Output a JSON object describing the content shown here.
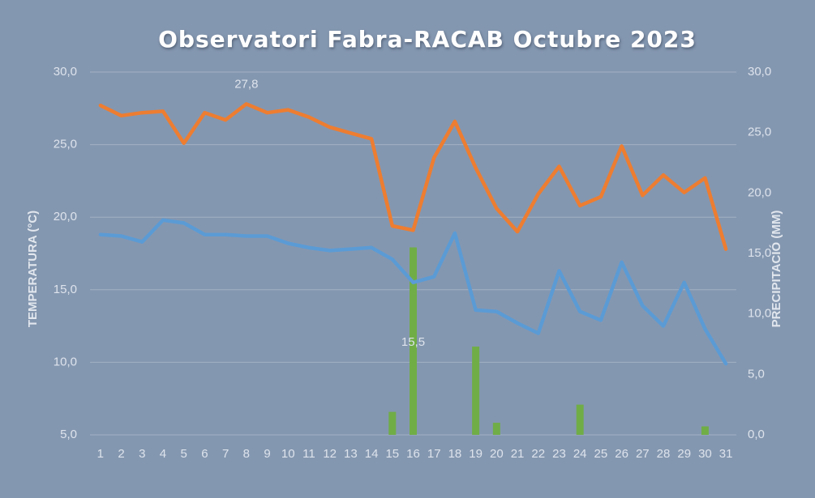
{
  "chart_data": {
    "type": "combo",
    "title": "Observatori Fabra-RACAB Octubre 2023",
    "y_label": "TEMPERATURA (°C)",
    "y2_label": "PRECIPITACIÓ (MM)",
    "categories": [
      "1",
      "2",
      "3",
      "4",
      "5",
      "6",
      "7",
      "8",
      "9",
      "10",
      "11",
      "12",
      "13",
      "14",
      "15",
      "16",
      "17",
      "18",
      "19",
      "20",
      "21",
      "22",
      "23",
      "24",
      "25",
      "26",
      "27",
      "28",
      "29",
      "30",
      "31"
    ],
    "ylim": [
      5,
      30
    ],
    "yticks": [
      {
        "value": 5,
        "label": "5,0"
      },
      {
        "value": 10,
        "label": "10,0"
      },
      {
        "value": 15,
        "label": "15,0"
      },
      {
        "value": 20,
        "label": "20,0"
      },
      {
        "value": 25,
        "label": "25,0"
      },
      {
        "value": 30,
        "label": "30,0"
      }
    ],
    "y2lim": [
      0,
      30
    ],
    "y2ticks": [
      {
        "value": 0,
        "label": "0,0"
      },
      {
        "value": 5,
        "label": "5,0"
      },
      {
        "value": 10,
        "label": "10,0"
      },
      {
        "value": 15,
        "label": "15,0"
      },
      {
        "value": 20,
        "label": "20,0"
      },
      {
        "value": 25,
        "label": "25,0"
      },
      {
        "value": 30,
        "label": "30,0"
      }
    ],
    "grid": true,
    "series": [
      {
        "type": "bar",
        "axis": "y2",
        "color": "#70ad47",
        "values": [
          0,
          0,
          0,
          0,
          0,
          0,
          0,
          0,
          0,
          0,
          0,
          0,
          0,
          0,
          1.9,
          15.5,
          0,
          0,
          7.3,
          1.0,
          0,
          0,
          0,
          2.5,
          0,
          0,
          0,
          0,
          0,
          0.7,
          0
        ]
      },
      {
        "type": "line",
        "color": "#ed7d31",
        "values": [
          27.7,
          27.0,
          27.2,
          27.3,
          25.1,
          27.2,
          26.7,
          27.8,
          27.2,
          27.4,
          26.9,
          26.2,
          25.8,
          25.4,
          19.4,
          19.1,
          24.1,
          26.6,
          23.4,
          20.6,
          19.0,
          21.6,
          23.5,
          20.8,
          21.4,
          24.9,
          21.5,
          22.9,
          21.7,
          22.7,
          17.8
        ],
        "value_labels": [
          null,
          null,
          null,
          null,
          null,
          null,
          null,
          "27,8",
          null,
          null,
          null,
          null,
          null,
          null,
          null,
          null,
          null,
          null,
          null,
          null,
          null,
          null,
          null,
          null,
          null,
          null,
          null,
          null,
          null,
          null,
          null
        ]
      },
      {
        "type": "line",
        "color": "#5b9bd5",
        "values": [
          18.8,
          18.7,
          18.3,
          19.8,
          19.6,
          18.8,
          18.8,
          18.7,
          18.7,
          18.2,
          17.9,
          17.7,
          17.8,
          17.9,
          17.1,
          15.5,
          15.9,
          18.9,
          13.6,
          13.5,
          12.7,
          12.0,
          16.3,
          13.5,
          12.9,
          16.9,
          13.9,
          12.5,
          15.5,
          12.3,
          9.9
        ],
        "value_labels": [
          null,
          null,
          null,
          null,
          null,
          null,
          null,
          null,
          null,
          null,
          null,
          null,
          null,
          null,
          null,
          "15,5",
          null,
          null,
          null,
          null,
          null,
          null,
          null,
          null,
          null,
          null,
          null,
          null,
          null,
          null,
          null
        ]
      }
    ]
  }
}
